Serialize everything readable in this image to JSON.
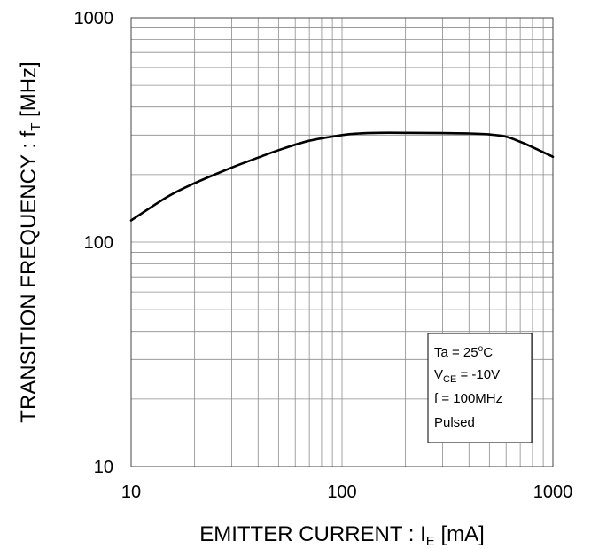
{
  "chart_data": {
    "type": "line",
    "x_scale": "log",
    "y_scale": "log",
    "xlim": [
      10,
      1000
    ],
    "ylim": [
      10,
      1000
    ],
    "grid": true,
    "x_ticks": [
      {
        "value": 10,
        "label": "10"
      },
      {
        "value": 100,
        "label": "100"
      },
      {
        "value": 1000,
        "label": "1000"
      }
    ],
    "y_ticks": [
      {
        "value": 10,
        "label": "10"
      },
      {
        "value": 100,
        "label": "100"
      },
      {
        "value": 1000,
        "label": "1000"
      }
    ],
    "xlabel": {
      "main": "EMITTER CURRENT : I",
      "sub": "E",
      "tail": " [mA]"
    },
    "ylabel": {
      "main": "TRANSITION FREQUENCY : f",
      "sub": "T",
      "tail": " [MHz]"
    },
    "series": [
      {
        "x": [
          10,
          15,
          20,
          30,
          40,
          50,
          70,
          100,
          120,
          150,
          200,
          300,
          400,
          500,
          600,
          700,
          800,
          1000
        ],
        "y": [
          125,
          160,
          183,
          215,
          238,
          257,
          283,
          300,
          305,
          307,
          307,
          306,
          305,
          302,
          295,
          280,
          265,
          240
        ]
      }
    ],
    "legend": {
      "position": "bottom-right",
      "lines": [
        {
          "main": "Ta = 25",
          "sup": "o",
          "tail": "C"
        },
        {
          "main": "V",
          "sub": "CE",
          "tail": " = -10V"
        },
        {
          "main": "f = 100MHz"
        },
        {
          "main": "Pulsed"
        }
      ]
    }
  }
}
